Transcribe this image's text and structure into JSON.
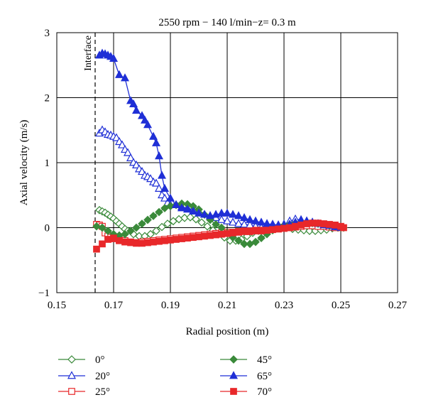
{
  "chart_data": {
    "type": "line",
    "title": "2550 rpm − 140 l/min−z= 0.3 m",
    "xlabel": "Radial position (m)",
    "ylabel": "Axial velocity (m/s)",
    "xlim": [
      0.15,
      0.27
    ],
    "ylim": [
      -1,
      3
    ],
    "xticks": [
      0.15,
      0.17,
      0.19,
      0.21,
      0.23,
      0.25,
      0.27
    ],
    "xtick_labels": [
      "0.15",
      "0.17",
      "0.19",
      "0.21",
      "0.23",
      "0.25",
      "0.27"
    ],
    "yticks": [
      -1,
      0,
      1,
      2,
      3
    ],
    "ytick_labels": [
      "−1",
      "0",
      "1",
      "2",
      "3"
    ],
    "grid": true,
    "legend_position": "bottom",
    "annotation": {
      "text": "Interface",
      "x": 0.1635
    },
    "series": [
      {
        "name": "0°",
        "color": "#3a8a3a",
        "marker": "diamond",
        "filled": false,
        "x": [
          0.165,
          0.166,
          0.167,
          0.168,
          0.169,
          0.17,
          0.171,
          0.172,
          0.173,
          0.174,
          0.175,
          0.177,
          0.179,
          0.181,
          0.183,
          0.185,
          0.187,
          0.189,
          0.191,
          0.193,
          0.195,
          0.197,
          0.199,
          0.201,
          0.203,
          0.205,
          0.207,
          0.209,
          0.211,
          0.213,
          0.215,
          0.217,
          0.219,
          0.221,
          0.223,
          0.225,
          0.227,
          0.229,
          0.231,
          0.233,
          0.235,
          0.237,
          0.239,
          0.241,
          0.243,
          0.245,
          0.247,
          0.249,
          0.251
        ],
        "y": [
          0.27,
          0.25,
          0.23,
          0.2,
          0.17,
          0.14,
          0.1,
          0.06,
          0.02,
          -0.02,
          -0.05,
          -0.1,
          -0.13,
          -0.13,
          -0.1,
          -0.05,
          0.01,
          0.06,
          0.1,
          0.13,
          0.15,
          0.16,
          0.13,
          0.08,
          0.02,
          -0.04,
          -0.1,
          -0.15,
          -0.2,
          -0.2,
          -0.18,
          -0.13,
          -0.08,
          -0.05,
          -0.03,
          -0.02,
          -0.01,
          0.0,
          0.0,
          -0.02,
          -0.03,
          -0.04,
          -0.05,
          -0.05,
          -0.04,
          -0.03,
          -0.01,
          0.0,
          0.0
        ]
      },
      {
        "name": "20°",
        "color": "#1f2fd6",
        "marker": "triangle",
        "filled": false,
        "x": [
          0.165,
          0.166,
          0.167,
          0.168,
          0.169,
          0.17,
          0.171,
          0.172,
          0.173,
          0.174,
          0.175,
          0.176,
          0.177,
          0.178,
          0.179,
          0.18,
          0.181,
          0.182,
          0.183,
          0.184,
          0.185,
          0.186,
          0.187,
          0.188,
          0.189,
          0.19,
          0.192,
          0.194,
          0.196,
          0.198,
          0.2,
          0.202,
          0.204,
          0.206,
          0.208,
          0.21,
          0.212,
          0.214,
          0.216,
          0.218,
          0.22,
          0.222,
          0.224,
          0.226,
          0.228,
          0.23,
          0.232,
          0.234,
          0.236,
          0.238,
          0.24,
          0.242,
          0.244,
          0.246,
          0.248,
          0.25
        ],
        "y": [
          1.45,
          1.5,
          1.47,
          1.43,
          1.42,
          1.4,
          1.38,
          1.32,
          1.27,
          1.2,
          1.15,
          1.07,
          1.0,
          0.96,
          0.9,
          0.86,
          0.8,
          0.78,
          0.75,
          0.7,
          0.68,
          0.6,
          0.5,
          0.45,
          0.38,
          0.35,
          0.35,
          0.32,
          0.3,
          0.28,
          0.25,
          0.2,
          0.18,
          0.15,
          0.12,
          0.1,
          0.08,
          0.06,
          0.05,
          0.04,
          0.02,
          0.0,
          -0.02,
          -0.01,
          0.02,
          0.05,
          0.1,
          0.13,
          0.12,
          0.1,
          0.08,
          0.05,
          0.03,
          0.01,
          0.0,
          0.0
        ]
      },
      {
        "name": "25°",
        "color": "#e8282a",
        "marker": "square",
        "filled": false,
        "x": [
          0.164,
          0.165,
          0.166,
          0.167,
          0.168,
          0.169,
          0.17,
          0.172,
          0.174,
          0.176,
          0.178,
          0.18,
          0.182,
          0.184,
          0.186,
          0.188,
          0.19,
          0.192,
          0.194,
          0.196,
          0.198,
          0.2,
          0.202,
          0.204,
          0.206,
          0.208,
          0.21,
          0.212,
          0.214,
          0.216,
          0.218,
          0.22,
          0.222,
          0.224,
          0.226,
          0.228,
          0.23,
          0.232,
          0.234,
          0.236,
          0.238,
          0.24,
          0.242,
          0.244,
          0.246,
          0.248,
          0.25
        ],
        "y": [
          0.05,
          0.04,
          0.02,
          -0.08,
          -0.13,
          -0.15,
          -0.17,
          -0.19,
          -0.2,
          -0.22,
          -0.23,
          -0.22,
          -0.21,
          -0.2,
          -0.19,
          -0.18,
          -0.17,
          -0.16,
          -0.15,
          -0.14,
          -0.13,
          -0.12,
          -0.11,
          -0.1,
          -0.09,
          -0.08,
          -0.07,
          -0.07,
          -0.06,
          -0.05,
          -0.05,
          -0.04,
          -0.04,
          -0.03,
          -0.02,
          -0.02,
          -0.01,
          0.0,
          0.01,
          0.02,
          0.03,
          0.03,
          0.02,
          0.02,
          0.01,
          0.0,
          0.0
        ]
      },
      {
        "name": "45°",
        "color": "#3a8a3a",
        "marker": "diamond",
        "filled": true,
        "x": [
          0.164,
          0.166,
          0.168,
          0.17,
          0.172,
          0.174,
          0.176,
          0.178,
          0.18,
          0.182,
          0.184,
          0.186,
          0.188,
          0.19,
          0.192,
          0.194,
          0.196,
          0.198,
          0.2,
          0.202,
          0.204,
          0.206,
          0.208,
          0.21,
          0.212,
          0.214,
          0.216,
          0.218,
          0.22,
          0.222,
          0.224,
          0.226,
          0.228,
          0.23,
          0.232,
          0.234,
          0.236,
          0.238,
          0.24,
          0.242,
          0.244,
          0.246,
          0.248,
          0.25
        ],
        "y": [
          0.02,
          0.0,
          -0.05,
          -0.1,
          -0.12,
          -0.1,
          -0.05,
          0.0,
          0.06,
          0.12,
          0.18,
          0.24,
          0.3,
          0.33,
          0.35,
          0.37,
          0.36,
          0.33,
          0.28,
          0.2,
          0.12,
          0.05,
          0.0,
          -0.08,
          -0.15,
          -0.2,
          -0.25,
          -0.25,
          -0.22,
          -0.16,
          -0.1,
          -0.04,
          0.0,
          0.03,
          0.05,
          0.07,
          0.08,
          0.08,
          0.07,
          0.06,
          0.05,
          0.03,
          0.02,
          0.0
        ]
      },
      {
        "name": "65°",
        "color": "#1f2fd6",
        "marker": "triangle",
        "filled": true,
        "x": [
          0.165,
          0.166,
          0.167,
          0.168,
          0.169,
          0.17,
          0.172,
          0.174,
          0.176,
          0.177,
          0.178,
          0.18,
          0.181,
          0.182,
          0.184,
          0.185,
          0.186,
          0.187,
          0.188,
          0.19,
          0.192,
          0.194,
          0.196,
          0.198,
          0.2,
          0.202,
          0.204,
          0.206,
          0.208,
          0.21,
          0.212,
          0.214,
          0.216,
          0.218,
          0.22,
          0.222,
          0.224,
          0.226,
          0.228,
          0.23,
          0.232,
          0.234,
          0.236,
          0.238,
          0.24,
          0.242,
          0.244,
          0.246,
          0.248,
          0.25
        ],
        "y": [
          2.65,
          2.68,
          2.67,
          2.65,
          2.63,
          2.6,
          2.35,
          2.3,
          1.95,
          1.9,
          1.8,
          1.72,
          1.65,
          1.58,
          1.4,
          1.3,
          1.1,
          0.8,
          0.6,
          0.45,
          0.35,
          0.3,
          0.28,
          0.25,
          0.22,
          0.2,
          0.18,
          0.2,
          0.22,
          0.22,
          0.2,
          0.18,
          0.15,
          0.12,
          0.1,
          0.08,
          0.06,
          0.05,
          0.04,
          0.03,
          0.05,
          0.08,
          0.1,
          0.1,
          0.08,
          0.06,
          0.04,
          0.03,
          0.01,
          0.0
        ]
      },
      {
        "name": "70°",
        "color": "#e8282a",
        "marker": "square",
        "filled": true,
        "x": [
          0.164,
          0.166,
          0.168,
          0.17,
          0.172,
          0.174,
          0.176,
          0.178,
          0.18,
          0.182,
          0.184,
          0.186,
          0.188,
          0.19,
          0.192,
          0.194,
          0.196,
          0.198,
          0.2,
          0.202,
          0.204,
          0.206,
          0.208,
          0.21,
          0.212,
          0.214,
          0.216,
          0.218,
          0.22,
          0.222,
          0.224,
          0.226,
          0.228,
          0.23,
          0.232,
          0.234,
          0.236,
          0.238,
          0.24,
          0.242,
          0.244,
          0.246,
          0.248,
          0.25,
          0.251
        ],
        "y": [
          -0.33,
          -0.25,
          -0.18,
          -0.16,
          -0.2,
          -0.22,
          -0.23,
          -0.24,
          -0.24,
          -0.23,
          -0.22,
          -0.21,
          -0.2,
          -0.19,
          -0.18,
          -0.17,
          -0.16,
          -0.15,
          -0.14,
          -0.13,
          -0.12,
          -0.11,
          -0.1,
          -0.09,
          -0.08,
          -0.07,
          -0.06,
          -0.06,
          -0.05,
          -0.05,
          -0.04,
          -0.03,
          -0.02,
          -0.01,
          0.0,
          0.02,
          0.04,
          0.06,
          0.07,
          0.07,
          0.06,
          0.05,
          0.04,
          0.02,
          0.0
        ]
      }
    ]
  }
}
